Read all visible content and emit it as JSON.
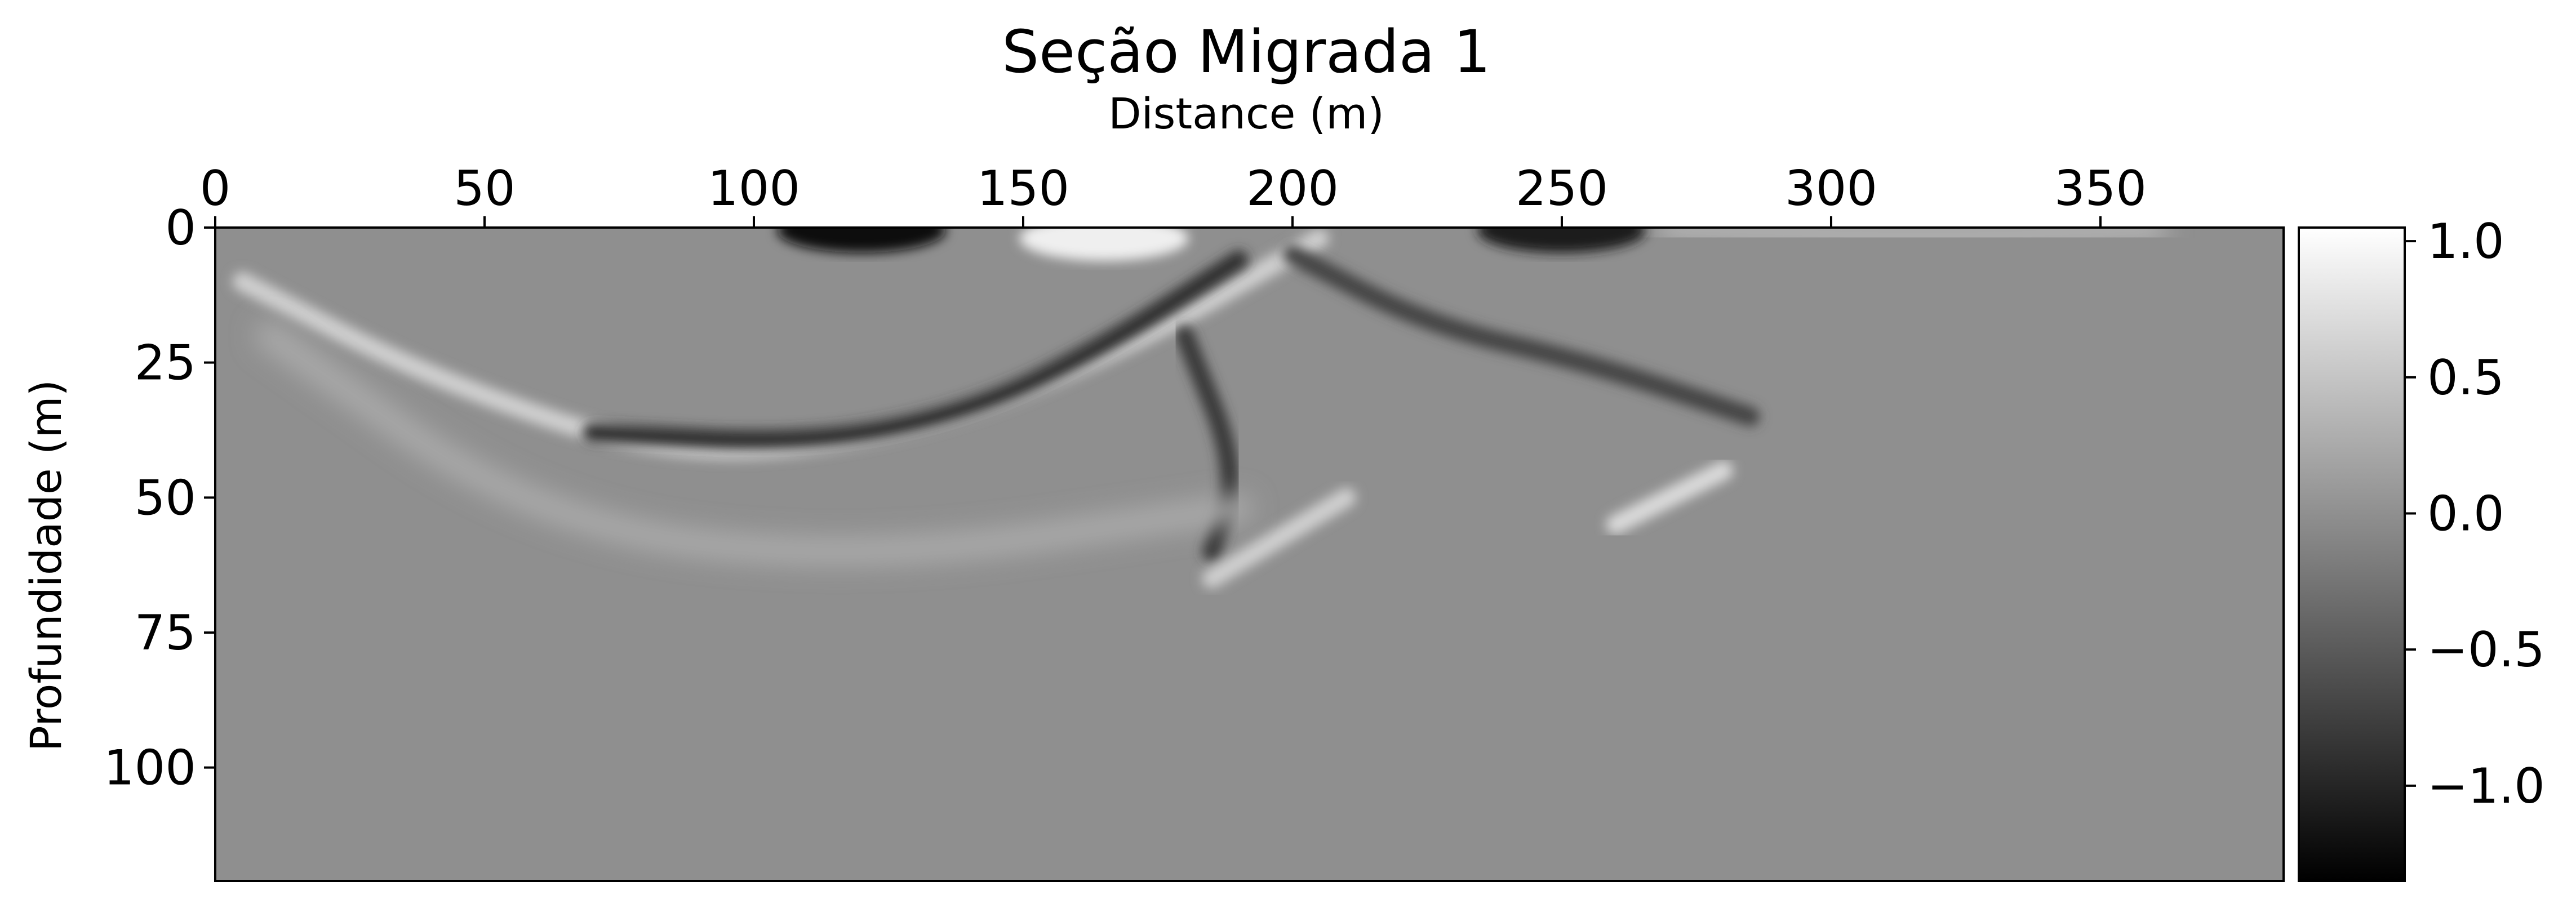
{
  "chart_data": {
    "type": "heatmap",
    "title": "Seção Migrada 1",
    "xlabel": "Distance (m)",
    "ylabel": "Profundidade (m)",
    "x_axis_position": "top",
    "y_axis_inverted": true,
    "xlim": [
      0,
      384
    ],
    "ylim": [
      121,
      0
    ],
    "x_ticks": [
      0,
      50,
      100,
      150,
      200,
      250,
      300,
      350
    ],
    "y_ticks": [
      0,
      25,
      50,
      75,
      100
    ],
    "colormap": "gray",
    "colorbar": {
      "range": [
        -1.35,
        1.05
      ],
      "ticks": [
        1.0,
        0.5,
        0.0,
        -0.5,
        -1.0
      ],
      "tick_labels": [
        "1.0",
        "0.5",
        "0.0",
        "−0.5",
        "−1.0"
      ]
    },
    "background_value": 0.0,
    "features": [
      {
        "kind": "blob",
        "x": 120,
        "y": 0.5,
        "value": -1.2
      },
      {
        "kind": "blob",
        "x": 250,
        "y": 0.5,
        "value": -1.1
      },
      {
        "kind": "blob",
        "x": 165,
        "y": 2,
        "value": 0.9
      },
      {
        "kind": "arc",
        "points": [
          [
            5,
            10
          ],
          [
            40,
            28
          ],
          [
            85,
            43
          ],
          [
            130,
            38
          ],
          [
            170,
            22
          ],
          [
            205,
            2
          ]
        ],
        "value": 0.6
      },
      {
        "kind": "arc",
        "points": [
          [
            70,
            38
          ],
          [
            110,
            40
          ],
          [
            140,
            34
          ],
          [
            165,
            22
          ],
          [
            190,
            6
          ]
        ],
        "value": -0.9
      },
      {
        "kind": "arc",
        "points": [
          [
            200,
            5
          ],
          [
            225,
            18
          ],
          [
            255,
            25
          ],
          [
            285,
            35
          ]
        ],
        "value": -0.7
      },
      {
        "kind": "arc",
        "points": [
          [
            180,
            20
          ],
          [
            190,
            45
          ],
          [
            185,
            60
          ]
        ],
        "value": -0.8
      },
      {
        "kind": "arc",
        "points": [
          [
            185,
            65
          ],
          [
            210,
            50
          ]
        ],
        "value": 0.6
      },
      {
        "kind": "arc",
        "points": [
          [
            260,
            55
          ],
          [
            280,
            45
          ]
        ],
        "value": 0.7
      },
      {
        "kind": "arc",
        "points": [
          [
            10,
            20
          ],
          [
            60,
            55
          ],
          [
            120,
            62
          ],
          [
            190,
            52
          ]
        ],
        "value": 0.25
      },
      {
        "kind": "arc",
        "points": [
          [
            270,
            0
          ],
          [
            320,
            2
          ],
          [
            360,
            0
          ]
        ],
        "value": 0.35
      }
    ]
  }
}
